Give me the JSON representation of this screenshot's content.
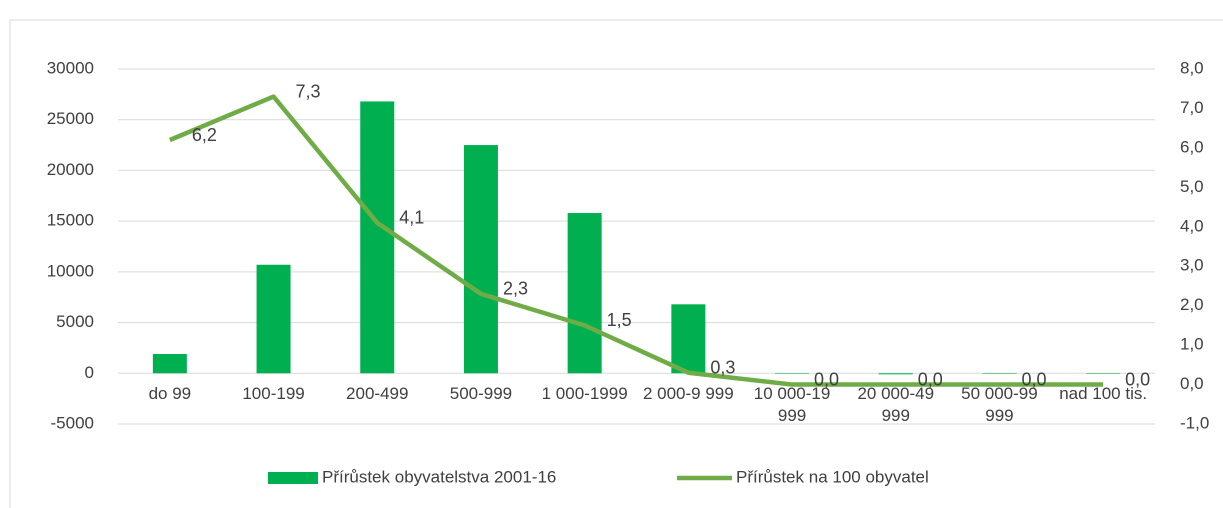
{
  "chart_data": {
    "type": "bar_line",
    "categories": [
      "do 99",
      "100-199",
      "200-499",
      "500-999",
      "1 000-1999",
      "2 000-9 999",
      "10 000-19 999",
      "20 000-49 999",
      "50 000-99 999",
      "nad 100 tis."
    ],
    "series": [
      {
        "name": "Přírůstek obyvatelstva 2001-16",
        "type": "bar",
        "color": "#00b050",
        "values": [
          1900,
          10700,
          26800,
          22500,
          15800,
          6800,
          0,
          -100,
          0,
          0
        ]
      },
      {
        "name": "Přírůstek na 100 obyvatel",
        "type": "line",
        "axis": "y2",
        "color": "#6fac46",
        "values": [
          6.2,
          7.3,
          4.1,
          2.3,
          1.5,
          0.3,
          0.0,
          0.0,
          0.0,
          0.0
        ],
        "value_labels": [
          "6,2",
          "7,3",
          "4,1",
          "2,3",
          "1,5",
          "0,3",
          "0,0",
          "0,0",
          "0,0",
          "0,0"
        ]
      }
    ],
    "ylim": [
      -5000,
      30000
    ],
    "yticks": [
      -5000,
      0,
      5000,
      10000,
      15000,
      20000,
      25000,
      30000
    ],
    "y2lim": [
      -1,
      8
    ],
    "y2ticks": [
      {
        "value": -1,
        "label": "-1,0"
      },
      {
        "value": 0,
        "label": "0,0"
      },
      {
        "value": 1,
        "label": "1,0"
      },
      {
        "value": 2,
        "label": "2,0"
      },
      {
        "value": 3,
        "label": "3,0"
      },
      {
        "value": 4,
        "label": "4,0"
      },
      {
        "value": 5,
        "label": "5,0"
      },
      {
        "value": 6,
        "label": "6,0"
      },
      {
        "value": 7,
        "label": "7,0"
      },
      {
        "value": 8,
        "label": "8,0"
      }
    ],
    "grid": true,
    "legend": "bottom"
  }
}
